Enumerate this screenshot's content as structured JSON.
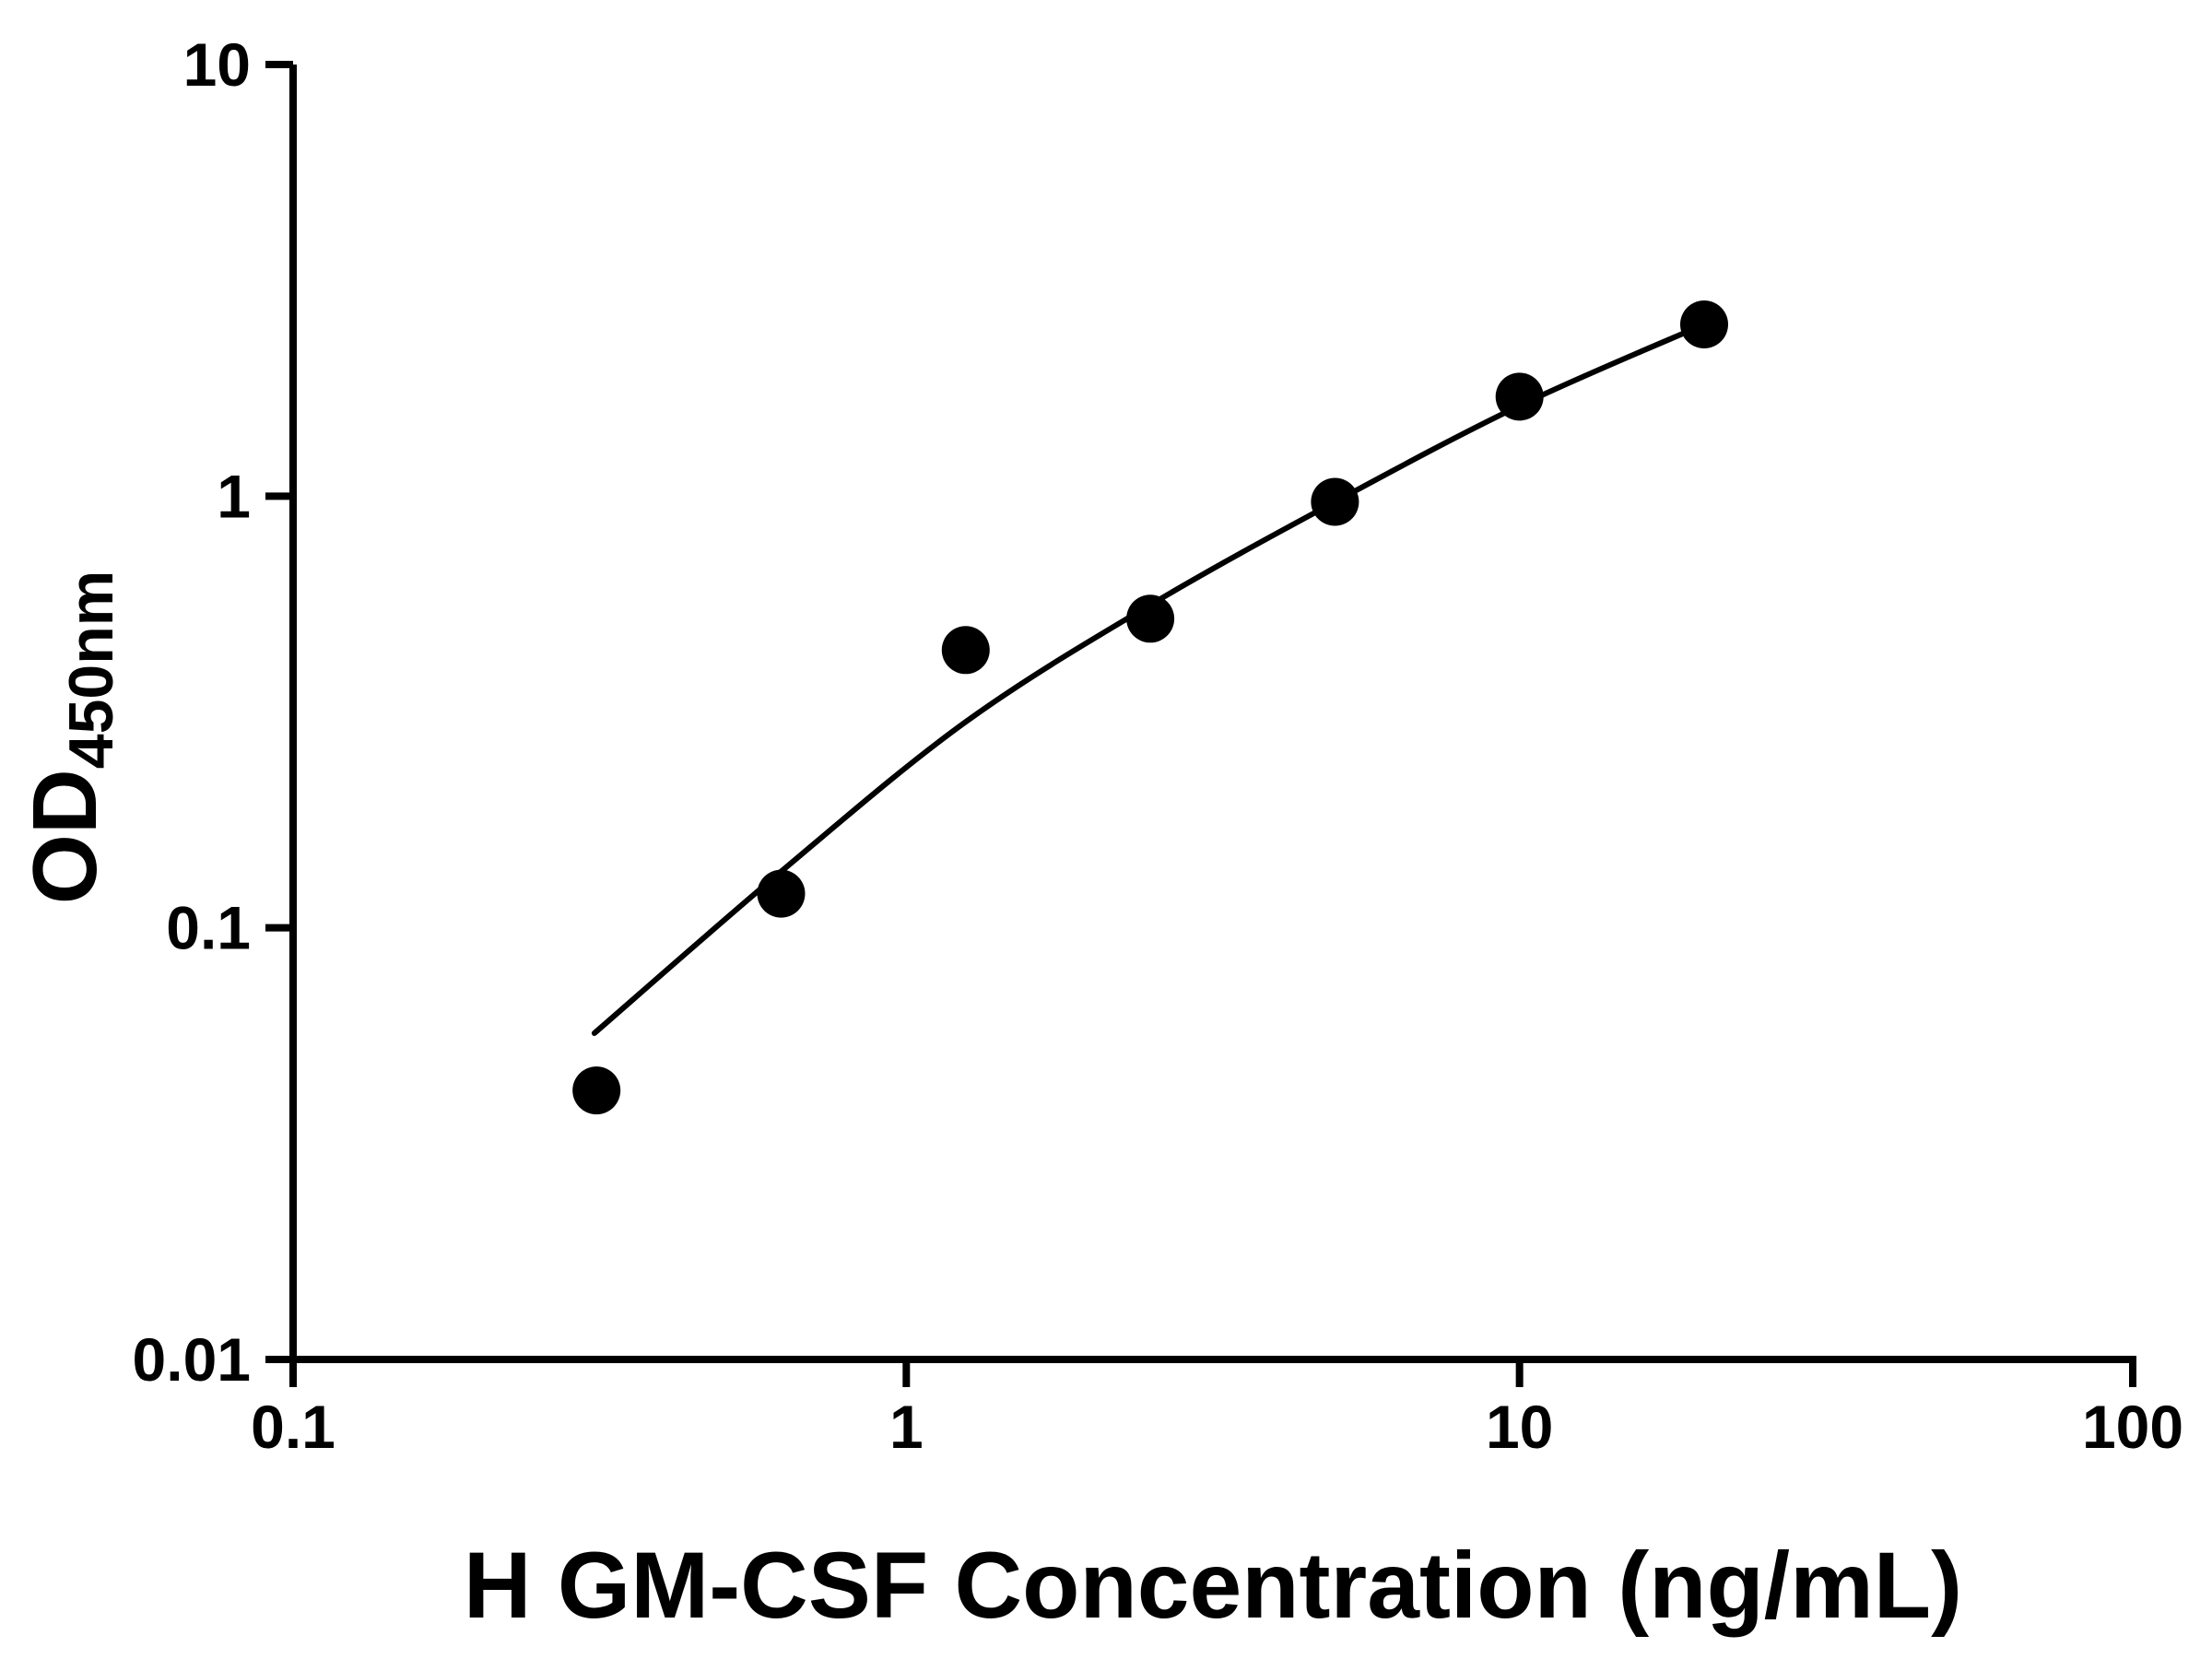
{
  "chart_data": {
    "type": "scatter",
    "title": "",
    "xlabel": "H GM-CSF Concentration (ng/mL)",
    "ylabel": "OD450nm",
    "ylabel_main": "OD",
    "ylabel_sub": "450nm",
    "x_scale": "log",
    "y_scale": "log",
    "xlim": [
      0.1,
      100
    ],
    "ylim": [
      0.01,
      10
    ],
    "x_ticks": [
      0.1,
      1,
      10,
      100
    ],
    "x_tick_labels": [
      "0.1",
      "1",
      "10",
      "100"
    ],
    "y_ticks": [
      0.01,
      0.1,
      1,
      10
    ],
    "y_tick_labels": [
      "0.01",
      "0.1",
      "1",
      "10"
    ],
    "grid": false,
    "legend": null,
    "marker_color": "#000000",
    "line_color": "#000000",
    "axis_color": "#000000",
    "points": [
      {
        "x": 0.3125,
        "y": 0.042
      },
      {
        "x": 0.625,
        "y": 0.12
      },
      {
        "x": 1.25,
        "y": 0.44
      },
      {
        "x": 2.5,
        "y": 0.52
      },
      {
        "x": 5,
        "y": 0.97
      },
      {
        "x": 10,
        "y": 1.7
      },
      {
        "x": 20,
        "y": 2.5
      }
    ],
    "fit_curve": [
      {
        "x": 0.31,
        "y": 0.057
      },
      {
        "x": 0.625,
        "y": 0.135
      },
      {
        "x": 1.25,
        "y": 0.3
      },
      {
        "x": 2.5,
        "y": 0.56
      },
      {
        "x": 5,
        "y": 0.97
      },
      {
        "x": 10,
        "y": 1.62
      },
      {
        "x": 20,
        "y": 2.5
      }
    ]
  }
}
